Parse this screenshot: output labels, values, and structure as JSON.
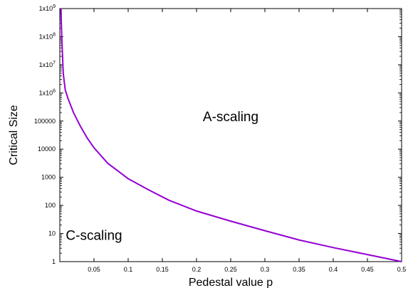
{
  "chart_data": {
    "type": "line",
    "xlabel": "Pedestal value p",
    "ylabel": "Critical Size",
    "xlim": [
      0,
      0.5
    ],
    "ylim": [
      1,
      1000000000
    ],
    "yscale": "log",
    "grid": false,
    "x_ticks": [
      {
        "value": 0.05,
        "label": "0.05"
      },
      {
        "value": 0.1,
        "label": "0.1"
      },
      {
        "value": 0.15,
        "label": "0.15"
      },
      {
        "value": 0.2,
        "label": "0.2"
      },
      {
        "value": 0.25,
        "label": "0.25"
      },
      {
        "value": 0.3,
        "label": "0.3"
      },
      {
        "value": 0.35,
        "label": "0.35"
      },
      {
        "value": 0.4,
        "label": "0.4"
      },
      {
        "value": 0.45,
        "label": "0.45"
      },
      {
        "value": 0.5,
        "label": "0.5"
      }
    ],
    "y_ticks": [
      {
        "value": 1,
        "label": "1"
      },
      {
        "value": 10,
        "label": "10"
      },
      {
        "value": 100,
        "label": "100"
      },
      {
        "value": 1000,
        "label": "1000"
      },
      {
        "value": 10000,
        "label": "10000"
      },
      {
        "value": 100000,
        "label": "100000"
      },
      {
        "value": 1000000,
        "label": "1x10",
        "exp": "6"
      },
      {
        "value": 10000000,
        "label": "1x10",
        "exp": "7"
      },
      {
        "value": 100000000,
        "label": "1x10",
        "exp": "8"
      },
      {
        "value": 1000000000,
        "label": "1x10",
        "exp": "9"
      }
    ],
    "series": [
      {
        "color": "#9400d3",
        "x": [
          0.0015,
          0.003,
          0.005,
          0.008,
          0.012,
          0.02,
          0.03,
          0.04,
          0.05,
          0.07,
          0.1,
          0.13,
          0.16,
          0.2,
          0.25,
          0.3,
          0.35,
          0.4,
          0.45,
          0.5
        ],
        "y": [
          1000000000,
          79400000,
          5000000,
          1260000,
          631000,
          200000,
          66100,
          25100,
          11200,
          3160,
          891,
          355,
          151,
          63.1,
          27.5,
          12.6,
          5.89,
          3.16,
          1.78,
          1.0
        ]
      }
    ],
    "annotations": [
      {
        "text": "A-scaling",
        "x": 0.25,
        "y": 100000
      },
      {
        "text": "C-scaling",
        "x": 0.05,
        "y": 6
      }
    ]
  }
}
